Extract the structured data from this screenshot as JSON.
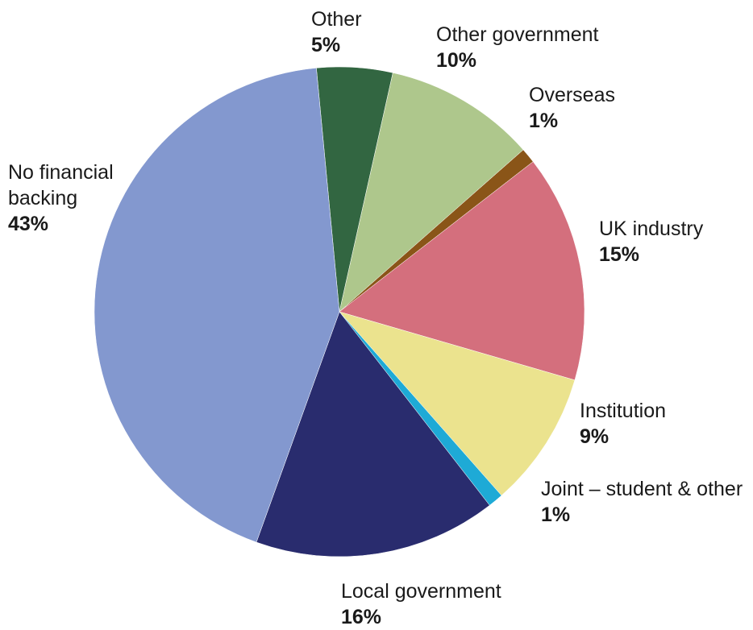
{
  "chart_data": {
    "type": "pie",
    "title": "",
    "slices": [
      {
        "label": "Other",
        "value": 5,
        "display": "5%",
        "color": "#326641"
      },
      {
        "label": "Other government",
        "value": 10,
        "display": "10%",
        "color": "#aec78c"
      },
      {
        "label": "Overseas",
        "value": 1,
        "display": "1%",
        "color": "#8a5518"
      },
      {
        "label": "UK industry",
        "value": 15,
        "display": "15%",
        "color": "#d46f7d"
      },
      {
        "label": "Institution",
        "value": 9,
        "display": "9%",
        "color": "#ebe38e"
      },
      {
        "label": "Joint – student & other",
        "value": 1,
        "display": "1%",
        "color": "#1eaad6"
      },
      {
        "label": "Local government",
        "value": 16,
        "display": "16%",
        "color": "#292c6e"
      },
      {
        "label": "No financial\nbacking",
        "value": 43,
        "display": "43%",
        "color": "#8398cf"
      }
    ]
  }
}
